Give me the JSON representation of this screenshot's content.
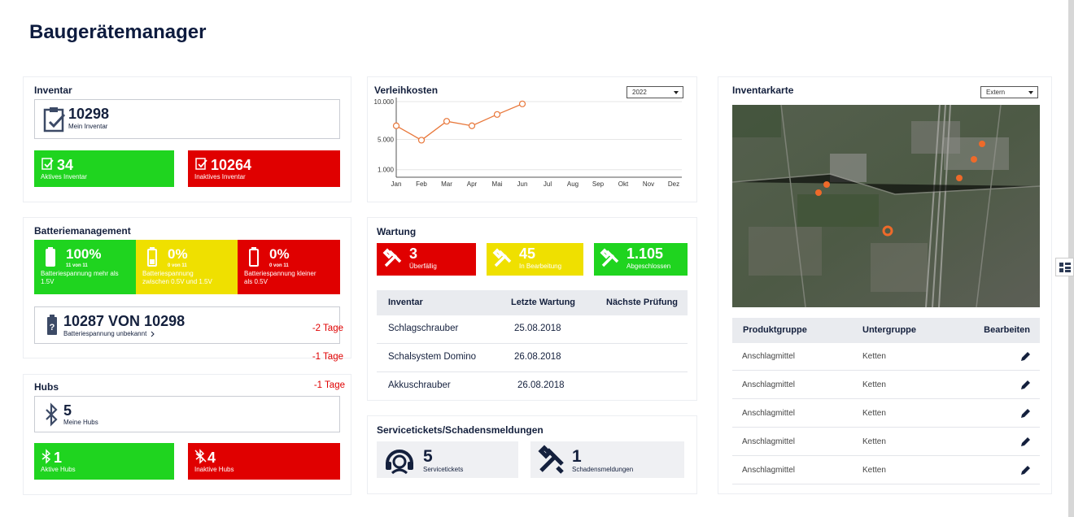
{
  "header": {
    "title": "Baugerätemanager"
  },
  "inventar": {
    "title": "Inventar",
    "total": {
      "value": "10298",
      "label": "Mein Inventar"
    },
    "active": {
      "value": "34",
      "label": "Aktives Inventar"
    },
    "inactive": {
      "value": "10264",
      "label": "Inaktives Inventar"
    }
  },
  "batterie": {
    "title": "Batteriemanagement",
    "boxes": [
      {
        "value": "100%",
        "count": "11 von 11",
        "label": "Batteriespannung mehr als 1.5V"
      },
      {
        "value": "0%",
        "count": "0 von 11",
        "label": "Batteriespannung zwischen 0.5V und 1.5V"
      },
      {
        "value": "0%",
        "count": "0 von 11",
        "label": "Batteriespannung kleiner als 0.5V"
      }
    ],
    "unknown": {
      "value": "10287 VON 10298",
      "label": "Batteriespannung unbekannt"
    }
  },
  "hubs": {
    "title": "Hubs",
    "total": {
      "value": "5",
      "label": "Meine Hubs"
    },
    "active": {
      "value": "1",
      "label": "Aktive Hubs"
    },
    "inactive": {
      "value": "4",
      "label": "Inaktive Hubs"
    }
  },
  "verleih": {
    "year": "2022"
  },
  "chart_data": {
    "type": "line",
    "title": "Verleihkosten",
    "categories": [
      "Jan",
      "Feb",
      "Mar",
      "Apr",
      "Mai",
      "Jun",
      "Jul",
      "Aug",
      "Sep",
      "Okt",
      "Nov",
      "Dez"
    ],
    "values": [
      6800,
      4900,
      7400,
      6800,
      8300,
      9700,
      null,
      null,
      null,
      null,
      null,
      null
    ],
    "color": "#e8773a",
    "ylim": [
      0,
      10000
    ],
    "yticks": [
      {
        "value": 1000,
        "label": "1.000"
      },
      {
        "value": 5000,
        "label": "5.000"
      },
      {
        "value": 10000,
        "label": "10.000"
      }
    ],
    "grid": true
  },
  "wartung": {
    "title": "Wartung",
    "boxes": [
      {
        "value": "3",
        "label": "Überfällig"
      },
      {
        "value": "45",
        "label": "In Bearbeitung"
      },
      {
        "value": "1.105",
        "label": "Abgeschlossen"
      }
    ],
    "table": {
      "columns": [
        "Inventar",
        "Letzte Wartung",
        "Nächste Prüfung"
      ],
      "rows": [
        [
          "Schlagschrauber",
          "25.08.2018",
          "-2 Tage"
        ],
        [
          "Schalsystem Domino",
          "26.08.2018",
          "-1 Tage"
        ],
        [
          "Akkuschrauber",
          "26.08.2018",
          "-1 Tage"
        ]
      ]
    }
  },
  "service": {
    "title": "Servicetickets/Schadensmeldungen",
    "tickets": {
      "value": "5",
      "label": "Servicetickets"
    },
    "damage": {
      "value": "1",
      "label": "Schadensmeldungen"
    }
  },
  "karte": {
    "title": "Inventarkarte",
    "filter": "Extern",
    "table": {
      "columns": [
        "Produktgruppe",
        "Untergruppe",
        "Bearbeiten"
      ],
      "rows": [
        [
          "Anschlagmittel",
          "Ketten"
        ],
        [
          "Anschlagmittel",
          "Ketten"
        ],
        [
          "Anschlagmittel",
          "Ketten"
        ],
        [
          "Anschlagmittel",
          "Ketten"
        ],
        [
          "Anschlagmittel",
          "Ketten"
        ]
      ]
    }
  }
}
